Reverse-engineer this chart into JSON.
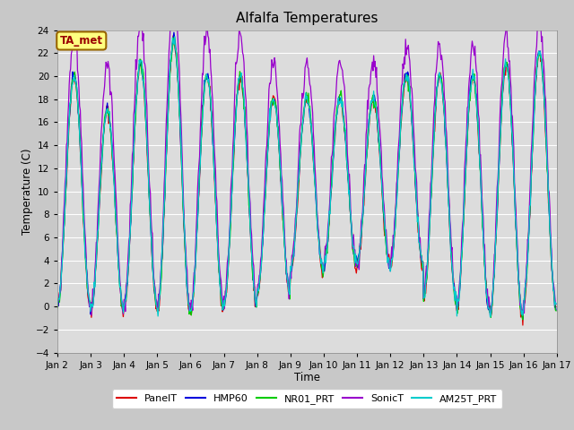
{
  "title": "Alfalfa Temperatures",
  "xlabel": "Time",
  "ylabel": "Temperature (C)",
  "ylim": [
    -4,
    24
  ],
  "yticks": [
    -4,
    -2,
    0,
    2,
    4,
    6,
    8,
    10,
    12,
    14,
    16,
    18,
    20,
    22,
    24
  ],
  "annotation_text": "TA_met",
  "annotation_box_color": "#ffff80",
  "annotation_text_color": "#990000",
  "fig_bg_color": "#c8c8c8",
  "plot_bg_color": "#dcdcdc",
  "series": [
    "PanelT",
    "HMP60",
    "NR01_PRT",
    "SonicT",
    "AM25T_PRT"
  ],
  "colors": [
    "#dd0000",
    "#0000dd",
    "#00cc00",
    "#9900cc",
    "#00cccc"
  ],
  "n_days": 15,
  "pts_per_day": 48,
  "day_maxes": [
    20,
    17,
    21,
    23,
    20,
    20,
    18,
    18,
    18,
    18,
    20,
    20,
    20,
    21,
    22
  ],
  "day_mins": [
    0,
    -0.5,
    0,
    -0.5,
    -0.5,
    0,
    1,
    3,
    3.5,
    3.5,
    3.5,
    0.5,
    -0.5,
    -1,
    0
  ],
  "sonic_extra": [
    3.5,
    3.5,
    3.5,
    3.5,
    3.5,
    3.5,
    3.0,
    3.0,
    3.0,
    3.0,
    2.5,
    2.5,
    2.5,
    2.5,
    2.5
  ]
}
